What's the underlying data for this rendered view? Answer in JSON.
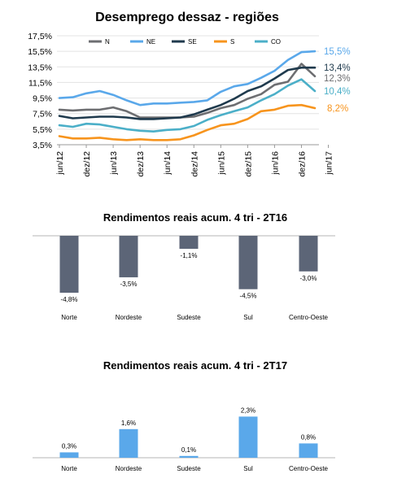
{
  "chart_data": [
    {
      "type": "line",
      "title": "Desemprego dessaz - regiões",
      "y_ticks": [
        "3,5%",
        "5,5%",
        "7,5%",
        "9,5%",
        "11,5%",
        "13,5%",
        "15,5%",
        "17,5%"
      ],
      "ylim": [
        3.5,
        17.5
      ],
      "x_ticks": [
        "jun/12",
        "dez/12",
        "jun/13",
        "dez/13",
        "jun/14",
        "dez/14",
        "jun/15",
        "dez/15",
        "jun/16",
        "dez/16",
        "jun/17"
      ],
      "grid": true,
      "legend_position": "top",
      "series": [
        {
          "name": "N",
          "color": "#6d6e71",
          "end_label": "12,3%",
          "values": [
            8.0,
            7.9,
            8.0,
            8.0,
            8.3,
            7.8,
            7.0,
            7.0,
            7.0,
            7.0,
            7.1,
            7.6,
            8.2,
            8.6,
            9.4,
            10.0,
            11.2,
            11.6,
            13.9,
            12.3
          ]
        },
        {
          "name": "NE",
          "color": "#5aa8ea",
          "end_label": "15,5%",
          "values": [
            9.5,
            9.6,
            10.1,
            10.4,
            9.9,
            9.2,
            8.6,
            8.8,
            8.8,
            8.9,
            9.0,
            9.2,
            10.3,
            11.0,
            11.3,
            12.1,
            13.0,
            14.4,
            15.4,
            15.5
          ]
        },
        {
          "name": "SE",
          "color": "#1f3a4d",
          "end_label": "13,4%",
          "values": [
            7.2,
            6.9,
            7.0,
            7.1,
            7.1,
            7.0,
            6.8,
            6.8,
            6.9,
            7.0,
            7.4,
            8.0,
            8.6,
            9.4,
            10.4,
            11.0,
            12.0,
            13.1,
            13.4,
            13.4
          ]
        },
        {
          "name": "S",
          "color": "#f7941d",
          "end_label": "8,2%",
          "values": [
            4.6,
            4.3,
            4.3,
            4.4,
            4.2,
            4.1,
            4.2,
            4.1,
            4.1,
            4.2,
            4.7,
            5.4,
            6.0,
            6.2,
            6.8,
            7.8,
            8.0,
            8.5,
            8.6,
            8.2
          ]
        },
        {
          "name": "CO",
          "color": "#4bafc8",
          "end_label": "10,4%",
          "values": [
            6.0,
            5.8,
            6.2,
            6.1,
            5.8,
            5.5,
            5.3,
            5.2,
            5.4,
            5.5,
            5.9,
            6.7,
            7.3,
            7.8,
            8.3,
            9.2,
            10.0,
            11.1,
            11.9,
            10.4
          ]
        }
      ]
    },
    {
      "type": "bar",
      "title": "Rendimentos reais acum. 4 tri - 2T16",
      "color": "#5c6577",
      "categories": [
        "Norte",
        "Nordeste",
        "Sudeste",
        "Sul",
        "Centro-Oeste"
      ],
      "values": [
        -4.8,
        -3.5,
        -1.1,
        -4.5,
        -3.0
      ],
      "labels": [
        "-4,8%",
        "-3,5%",
        "-1,1%",
        "-4,5%",
        "-3,0%"
      ]
    },
    {
      "type": "bar",
      "title": "Rendimentos reais acum. 4 tri - 2T17",
      "color": "#5aa8ea",
      "categories": [
        "Norte",
        "Nordeste",
        "Sudeste",
        "Sul",
        "Centro-Oeste"
      ],
      "values": [
        0.3,
        1.6,
        0.1,
        2.3,
        0.8
      ],
      "labels": [
        "0,3%",
        "1,6%",
        "0,1%",
        "2,3%",
        "0,8%"
      ]
    }
  ]
}
